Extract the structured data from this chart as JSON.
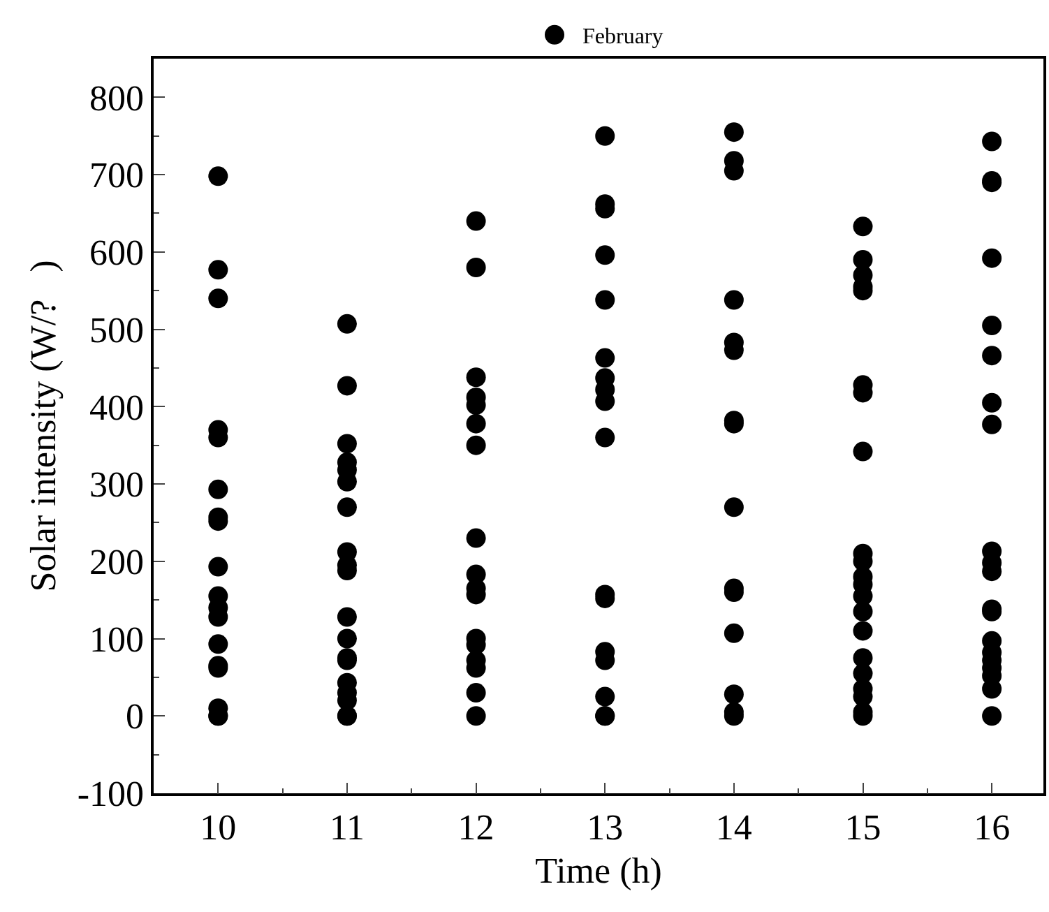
{
  "chart_data": {
    "type": "scatter",
    "xlabel": "Time (h)",
    "ylabel": "Solar intensity (W/?   )",
    "legend": "top",
    "marker": "circle",
    "xlim": [
      9.5,
      16.4
    ],
    "xticks": [
      10,
      11,
      12,
      13,
      14,
      15,
      16
    ],
    "ylim": [
      -100,
      850
    ],
    "yticks": [
      -100,
      0,
      100,
      200,
      300,
      400,
      500,
      600,
      700,
      800
    ],
    "series": [
      {
        "name": "February",
        "color": "#000000",
        "x": [
          10,
          10,
          10,
          10,
          10,
          10,
          10,
          10,
          10,
          10,
          10,
          10,
          10,
          10,
          10,
          10,
          10,
          10,
          11,
          11,
          11,
          11,
          11,
          11,
          11,
          11,
          11,
          11,
          11,
          11,
          11,
          11,
          11,
          11,
          11,
          11,
          11,
          12,
          12,
          12,
          12,
          12,
          12,
          12,
          12,
          12,
          12,
          12,
          12,
          12,
          12,
          12,
          12,
          12,
          13,
          13,
          13,
          13,
          13,
          13,
          13,
          13,
          13,
          13,
          13,
          13,
          13,
          13,
          13,
          13,
          13,
          14,
          14,
          14,
          14,
          14,
          14,
          14,
          14,
          14,
          14,
          14,
          14,
          14,
          14,
          14,
          15,
          15,
          15,
          15,
          15,
          15,
          15,
          15,
          15,
          15,
          15,
          15,
          15,
          15,
          15,
          15,
          15,
          15,
          15,
          15,
          15,
          16,
          16,
          16,
          16,
          16,
          16,
          16,
          16,
          16,
          16,
          16,
          16,
          16,
          16,
          16,
          16,
          16,
          16,
          16,
          16
        ],
        "values": [
          698,
          577,
          540,
          370,
          360,
          293,
          257,
          252,
          193,
          155,
          140,
          128,
          93,
          65,
          62,
          10,
          0,
          0,
          507,
          427,
          352,
          328,
          318,
          303,
          270,
          212,
          195,
          188,
          128,
          100,
          75,
          72,
          43,
          30,
          20,
          0,
          0,
          640,
          580,
          438,
          412,
          402,
          378,
          350,
          230,
          183,
          165,
          157,
          100,
          92,
          72,
          62,
          30,
          0,
          750,
          662,
          656,
          596,
          538,
          463,
          437,
          422,
          407,
          360,
          157,
          152,
          83,
          72,
          25,
          0,
          0,
          755,
          718,
          705,
          538,
          483,
          473,
          382,
          378,
          270,
          165,
          160,
          107,
          28,
          5,
          0,
          633,
          590,
          570,
          555,
          550,
          428,
          418,
          342,
          210,
          200,
          180,
          170,
          155,
          135,
          110,
          75,
          55,
          35,
          25,
          5,
          0,
          743,
          692,
          690,
          592,
          505,
          466,
          405,
          377,
          213,
          198,
          187,
          138,
          135,
          97,
          82,
          72,
          62,
          52,
          35,
          0
        ]
      }
    ]
  }
}
